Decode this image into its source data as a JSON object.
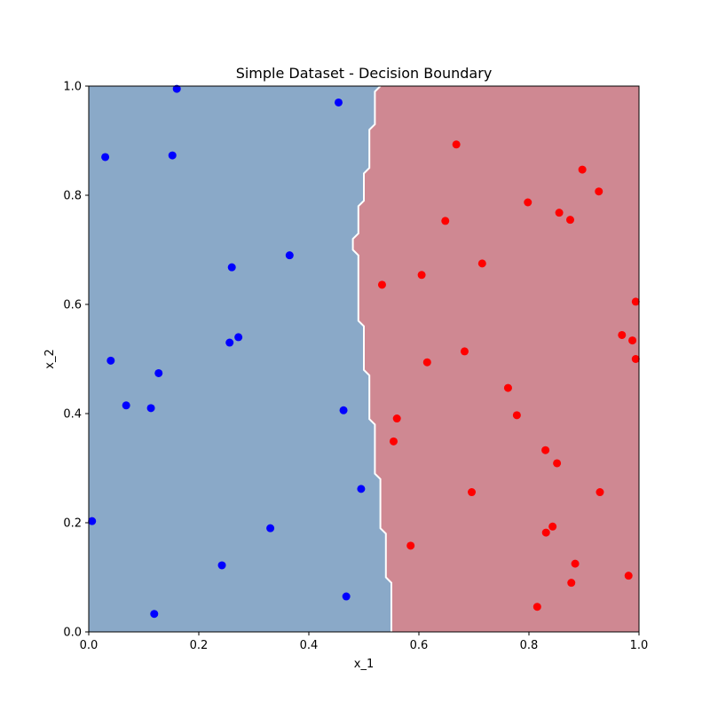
{
  "chart_data": {
    "type": "scatter",
    "title": "Simple Dataset - Decision Boundary",
    "xlabel": "x_1",
    "ylabel": "x_2",
    "xlim": [
      0,
      1
    ],
    "ylim": [
      0,
      1
    ],
    "xticks": [
      "0.0",
      "0.2",
      "0.4",
      "0.6",
      "0.8",
      "1.0"
    ],
    "yticks": [
      "0.0",
      "0.2",
      "0.4",
      "0.6",
      "0.8",
      "1.0"
    ],
    "grid": false,
    "legend": "none",
    "colors": {
      "class_0_region": "#8aa9c8",
      "class_1_region": "#cf8892",
      "class_0_points": "#0000ff",
      "class_1_points": "#ff0000",
      "boundary_line": "#ffffff"
    },
    "decision_boundary": [
      [
        0.55,
        0.0
      ],
      [
        0.55,
        0.09
      ],
      [
        0.54,
        0.1
      ],
      [
        0.54,
        0.18
      ],
      [
        0.53,
        0.19
      ],
      [
        0.53,
        0.28
      ],
      [
        0.52,
        0.29
      ],
      [
        0.52,
        0.38
      ],
      [
        0.51,
        0.39
      ],
      [
        0.51,
        0.47
      ],
      [
        0.5,
        0.48
      ],
      [
        0.5,
        0.56
      ],
      [
        0.49,
        0.57
      ],
      [
        0.49,
        0.69
      ],
      [
        0.48,
        0.7
      ],
      [
        0.48,
        0.72
      ],
      [
        0.49,
        0.73
      ],
      [
        0.49,
        0.78
      ],
      [
        0.5,
        0.79
      ],
      [
        0.5,
        0.84
      ],
      [
        0.51,
        0.85
      ],
      [
        0.51,
        0.92
      ],
      [
        0.52,
        0.93
      ],
      [
        0.52,
        0.99
      ],
      [
        0.53,
        1.0
      ]
    ],
    "series": [
      {
        "class": 0,
        "points": [
          [
            0.16,
            0.995
          ],
          [
            0.454,
            0.97
          ],
          [
            0.03,
            0.87
          ],
          [
            0.152,
            0.873
          ],
          [
            0.26,
            0.668
          ],
          [
            0.365,
            0.69
          ],
          [
            0.256,
            0.53
          ],
          [
            0.272,
            0.54
          ],
          [
            0.04,
            0.497
          ],
          [
            0.127,
            0.474
          ],
          [
            0.068,
            0.415
          ],
          [
            0.113,
            0.41
          ],
          [
            0.463,
            0.406
          ],
          [
            0.495,
            0.262
          ],
          [
            0.006,
            0.203
          ],
          [
            0.33,
            0.19
          ],
          [
            0.242,
            0.122
          ],
          [
            0.468,
            0.065
          ],
          [
            0.119,
            0.033
          ]
        ]
      },
      {
        "class": 1,
        "points": [
          [
            0.668,
            0.893
          ],
          [
            0.897,
            0.847
          ],
          [
            0.927,
            0.807
          ],
          [
            0.798,
            0.787
          ],
          [
            0.855,
            0.768
          ],
          [
            0.875,
            0.755
          ],
          [
            0.648,
            0.753
          ],
          [
            0.715,
            0.675
          ],
          [
            0.605,
            0.654
          ],
          [
            0.533,
            0.636
          ],
          [
            0.994,
            0.605
          ],
          [
            0.969,
            0.544
          ],
          [
            0.988,
            0.534
          ],
          [
            0.683,
            0.514
          ],
          [
            0.615,
            0.494
          ],
          [
            0.994,
            0.5
          ],
          [
            0.762,
            0.447
          ],
          [
            0.56,
            0.391
          ],
          [
            0.778,
            0.397
          ],
          [
            0.554,
            0.349
          ],
          [
            0.83,
            0.333
          ],
          [
            0.851,
            0.309
          ],
          [
            0.696,
            0.256
          ],
          [
            0.929,
            0.256
          ],
          [
            0.843,
            0.193
          ],
          [
            0.831,
            0.182
          ],
          [
            0.585,
            0.158
          ],
          [
            0.884,
            0.125
          ],
          [
            0.981,
            0.103
          ],
          [
            0.877,
            0.09
          ],
          [
            0.815,
            0.046
          ]
        ]
      }
    ]
  }
}
